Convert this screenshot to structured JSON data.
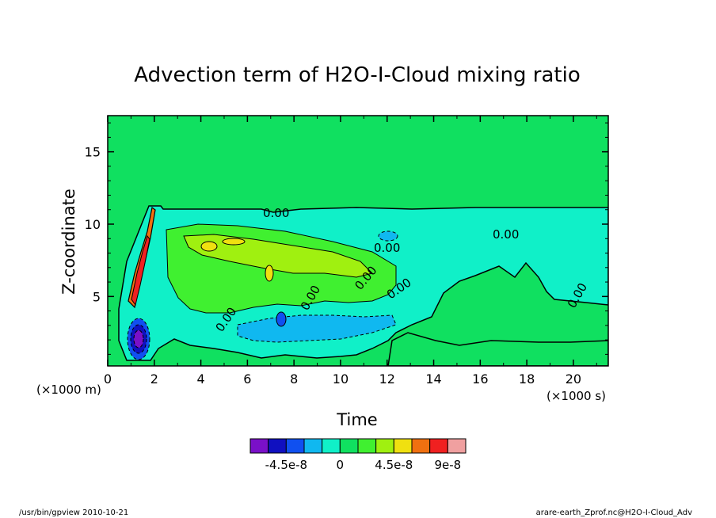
{
  "chart_data": {
    "type": "heatmap",
    "title": "Advection term of H2O-I-Cloud mixing ratio",
    "xlabel": "Time",
    "ylabel": "Z-coordinate",
    "x_unit": "(×1000 s)",
    "y_unit": "(×1000 m)",
    "xlim": [
      0,
      21.5
    ],
    "ylim": [
      0.2,
      17.5
    ],
    "x_ticks": [
      "0",
      "2",
      "4",
      "6",
      "8",
      "10",
      "12",
      "14",
      "16",
      "18",
      "20"
    ],
    "x_tick_values": [
      0,
      2,
      4,
      6,
      8,
      10,
      12,
      14,
      16,
      18,
      20
    ],
    "y_ticks": [
      "5",
      "10",
      "15"
    ],
    "y_tick_values": [
      5,
      10,
      15
    ],
    "contour_labels": [
      "0.00",
      "0.00",
      "0.00",
      "0.00",
      "0.00",
      "0.00",
      "0.00",
      "0.00"
    ],
    "colorbar": {
      "levels": [
        -7.5e-08,
        -6e-08,
        -4.5e-08,
        -3e-08,
        -1.5e-08,
        0,
        1.5e-08,
        3e-08,
        4.5e-08,
        6e-08,
        7.5e-08,
        9e-08,
        1.05e-07
      ],
      "tick_labels": [
        "-4.5e-8",
        "0",
        "4.5e-8",
        "9e-8"
      ],
      "tick_values": [
        -4.5e-08,
        0,
        4.5e-08,
        9e-08
      ],
      "colors": [
        "#7a10c8",
        "#1010c0",
        "#1050f0",
        "#10b8f0",
        "#10f0c8",
        "#10e060",
        "#40f030",
        "#a0f010",
        "#f0e010",
        "#f07010",
        "#f02020",
        "#f0a0a0"
      ]
    }
  },
  "footer": {
    "left": "/usr/bin/gpview   2010-10-21",
    "right": "arare-earth_Zprof.nc@H2O-I-Cloud_Adv"
  }
}
